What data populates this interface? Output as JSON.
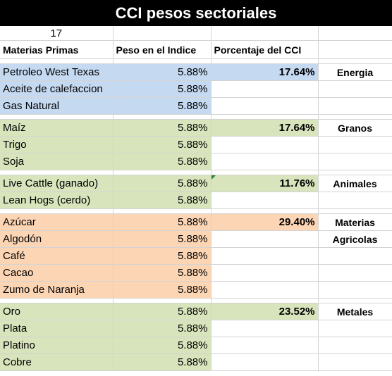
{
  "title": "CCI pesos sectoriales",
  "count": "17",
  "headers": [
    "Materias Primas",
    "Peso en el Indice",
    "Porcentaje del CCI"
  ],
  "colors": {
    "energia": "#c5d9f1",
    "granos": "#d8e4bc",
    "animales": "#d8e4bc",
    "agricolas": "#fcd5b4",
    "metales": "#d8e4bc"
  },
  "groups": [
    {
      "rows": [
        {
          "name": "Petroleo West Texas",
          "weight": "5.88%",
          "pct": "17.64%",
          "cat": "Energia"
        },
        {
          "name": "Aceite de calefaccion",
          "weight": "5.88%"
        },
        {
          "name": "Gas Natural",
          "weight": "5.88%"
        }
      ]
    },
    {
      "rows": [
        {
          "name": "Maíz",
          "weight": "5.88%",
          "pct": "17.64%",
          "cat": "Granos"
        },
        {
          "name": "Trigo",
          "weight": "5.88%"
        },
        {
          "name": "Soja",
          "weight": "5.88%"
        }
      ]
    },
    {
      "rows": [
        {
          "name": "Live Cattle (ganado)",
          "weight": "5.88%",
          "pct": "11.76%",
          "cat": "Animales"
        },
        {
          "name": "Lean Hogs (cerdo)",
          "weight": "5.88%"
        }
      ]
    },
    {
      "rows": [
        {
          "name": "Azúcar",
          "weight": "5.88%",
          "pct": "29.40%",
          "cat": "Materias"
        },
        {
          "name": "Algodón",
          "weight": "5.88%",
          "cat": "Agricolas"
        },
        {
          "name": "Café",
          "weight": "5.88%"
        },
        {
          "name": "Cacao",
          "weight": "5.88%"
        },
        {
          "name": "Zumo de Naranja",
          "weight": "5.88%"
        }
      ]
    },
    {
      "rows": [
        {
          "name": "Oro",
          "weight": "5.88%",
          "pct": "23.52%",
          "cat": "Metales"
        },
        {
          "name": "Plata",
          "weight": "5.88%"
        },
        {
          "name": "Platino",
          "weight": "5.88%"
        },
        {
          "name": "Cobre",
          "weight": "5.88%"
        }
      ]
    }
  ]
}
